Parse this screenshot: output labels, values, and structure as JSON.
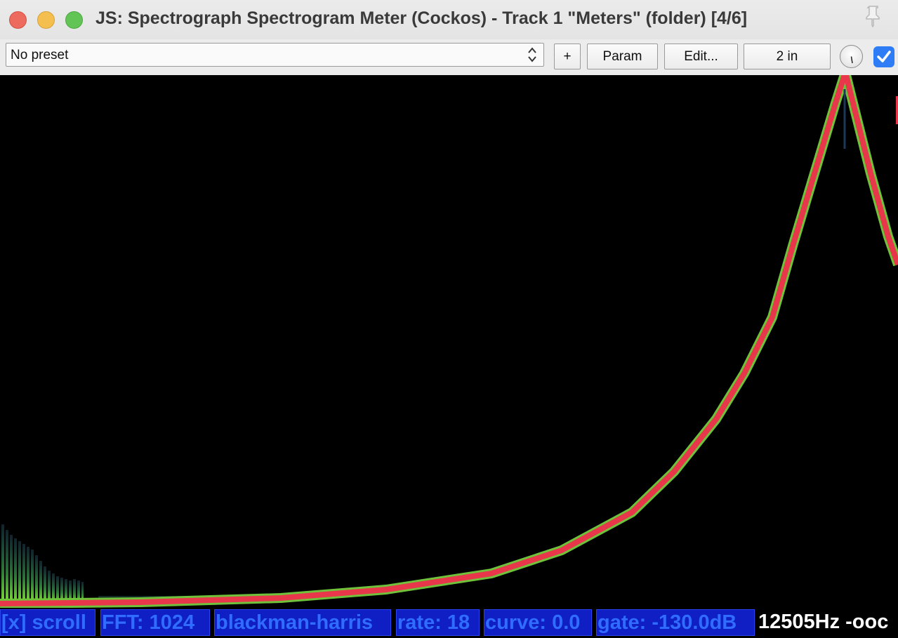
{
  "window": {
    "title": "JS: Spectrograph Spectrogram Meter (Cockos) - Track 1 \"Meters\" (folder) [4/6]",
    "close_icon": "close-icon",
    "minimize_icon": "minimize-icon",
    "zoom_icon": "zoom-icon",
    "pin_icon": "pin-icon"
  },
  "toolbar": {
    "preset_value": "No preset",
    "add_label": "+",
    "param_label": "Param",
    "edit_label": "Edit...",
    "io_label": "2 in",
    "knob_icon": "wet-knob-icon",
    "bypass_checked": true
  },
  "status": {
    "scroll": "[x] scroll",
    "fft": "FFT: 1024",
    "window_fn": "blackman-harris",
    "rate": "rate: 18",
    "curve": "curve: 0.0",
    "gate": "gate: -130.0dB",
    "readout": "12505Hz -ooc"
  },
  "colors": {
    "chip_bg": "#0f1fc4",
    "chip_text": "#2f6cff",
    "spectrum_core": "#e8364a",
    "spectrum_edge": "#6fc23a",
    "accent": "#2e7cf6"
  }
}
